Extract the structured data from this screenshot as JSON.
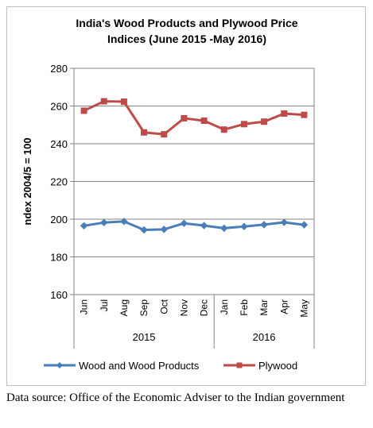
{
  "chart_data": {
    "type": "line",
    "title_lines": [
      "India's Wood Products and Plywood Price",
      "Indices (June 2015 -May 2016)"
    ],
    "ylabel": "ndex 2004/5 = 100",
    "ylim": [
      160,
      280
    ],
    "yticks": [
      160,
      180,
      200,
      220,
      240,
      260,
      280
    ],
    "categories": [
      "Jun",
      "Jul",
      "Aug",
      "Sep",
      "Oct",
      "Nov",
      "Dec",
      "Jan",
      "Feb",
      "Mar",
      "Apr",
      "May"
    ],
    "year_groups": [
      {
        "label": "2015",
        "start": 0,
        "end": 6
      },
      {
        "label": "2016",
        "start": 7,
        "end": 11
      }
    ],
    "grid": true,
    "legend_position": "bottom",
    "series": [
      {
        "name": "Wood and Wood Products",
        "color": "#4a7ebb",
        "marker": "diamond",
        "values": [
          196.5,
          198.2,
          198.8,
          194.3,
          194.6,
          197.8,
          196.6,
          195.2,
          196.1,
          197.1,
          198.3,
          197.0
        ]
      },
      {
        "name": "Plywood",
        "color": "#be4b48",
        "marker": "square",
        "values": [
          257.5,
          262.5,
          262.3,
          246.0,
          245.0,
          253.5,
          252.2,
          247.5,
          250.4,
          251.7,
          256.0,
          255.3
        ]
      }
    ]
  },
  "source_note": "Data source: Office of the Economic Adviser to the Indian government"
}
